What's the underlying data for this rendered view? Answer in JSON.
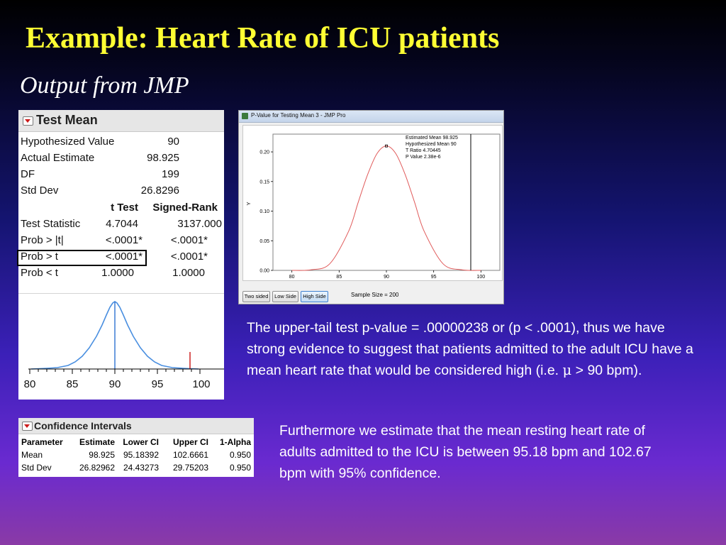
{
  "slide": {
    "title": "Example: Heart Rate of ICU patients",
    "subtitle": "Output from JMP"
  },
  "colors": {
    "title": "#ffff33",
    "panel_header": "#e6e6e6",
    "curve_blue": "#4a8fe0",
    "curve_red": "#e05a5a",
    "marker_red": "#cc2222"
  },
  "test_mean": {
    "header": "Test Mean",
    "collapse_icon": "red-triangle-icon",
    "rows": [
      {
        "label": "Hypothesized Value",
        "value": "90"
      },
      {
        "label": "Actual Estimate",
        "value": "98.925"
      },
      {
        "label": "DF",
        "value": "199"
      },
      {
        "label": "Std Dev",
        "value": "26.8296"
      }
    ],
    "col_headers": [
      "t Test",
      "Signed-Rank"
    ],
    "stat_rows": [
      {
        "label": "Test Statistic",
        "t": "4.7044",
        "sr": "3137.000"
      },
      {
        "label": "Prob > |t|",
        "t": "<.0001*",
        "sr": "<.0001*"
      },
      {
        "label": "Prob > t",
        "t": "<.0001*",
        "sr": "<.0001*"
      },
      {
        "label": "Prob < t",
        "t": "1.0000",
        "sr": "1.0000"
      }
    ],
    "axis_ticks": [
      "80",
      "85",
      "90",
      "95",
      "100"
    ]
  },
  "jmp_window": {
    "title": "P-Value for Testing Mean 3 - JMP Pro",
    "annotations": [
      "Estimated Mean 98.925",
      "Hypothesized Mean 90",
      "T Ratio 4.70445",
      "P Value 2.38e-6"
    ],
    "x_label": "X",
    "y_label": "Y",
    "x_ticks": [
      "80",
      "85",
      "90",
      "95",
      "100"
    ],
    "y_ticks": [
      "0.00",
      "0.05",
      "0.10",
      "0.15",
      "0.20"
    ],
    "buttons": [
      "Two sided",
      "Low Side",
      "High Side"
    ],
    "active_button": "High Side",
    "sample_size": "Sample Size = 200"
  },
  "chart_data": {
    "type": "line",
    "x": [
      80,
      82,
      84,
      86,
      87,
      88,
      89,
      90,
      91,
      92,
      93,
      94,
      96,
      98,
      100
    ],
    "series": [
      {
        "values": [
          0.0,
          0.001,
          0.011,
          0.066,
          0.114,
          0.161,
          0.197,
          0.21,
          0.197,
          0.161,
          0.114,
          0.066,
          0.011,
          0.001,
          0.0
        ]
      }
    ],
    "xlim": [
      78,
      102
    ],
    "ylim": [
      0,
      0.23
    ],
    "xlabel": "X",
    "ylabel": "Y",
    "vline": 98.925,
    "point": {
      "x": 90,
      "y": 0.21
    }
  },
  "paragraph1": {
    "text_before_mu": "The upper-tail test p-value = .00000238  or (p < .0001), thus we have strong evidence to suggest that patients admitted to the adult ICU have a mean heart rate that would be considered high (i.e. ",
    "mu": "μ",
    "text_after_mu": " > 90 bpm)."
  },
  "paragraph2": {
    "text": "Furthermore we estimate that the mean resting heart rate of adults admitted to the ICU is between 95.18 bpm and 102.67 bpm with 95% confidence."
  },
  "confidence_intervals": {
    "header": "Confidence Intervals",
    "columns": [
      "Parameter",
      "Estimate",
      "Lower CI",
      "Upper CI",
      "1-Alpha"
    ],
    "rows": [
      [
        "Mean",
        "98.925",
        "95.18392",
        "102.6661",
        "0.950"
      ],
      [
        "Std Dev",
        "26.82962",
        "24.43273",
        "29.75203",
        "0.950"
      ]
    ]
  }
}
